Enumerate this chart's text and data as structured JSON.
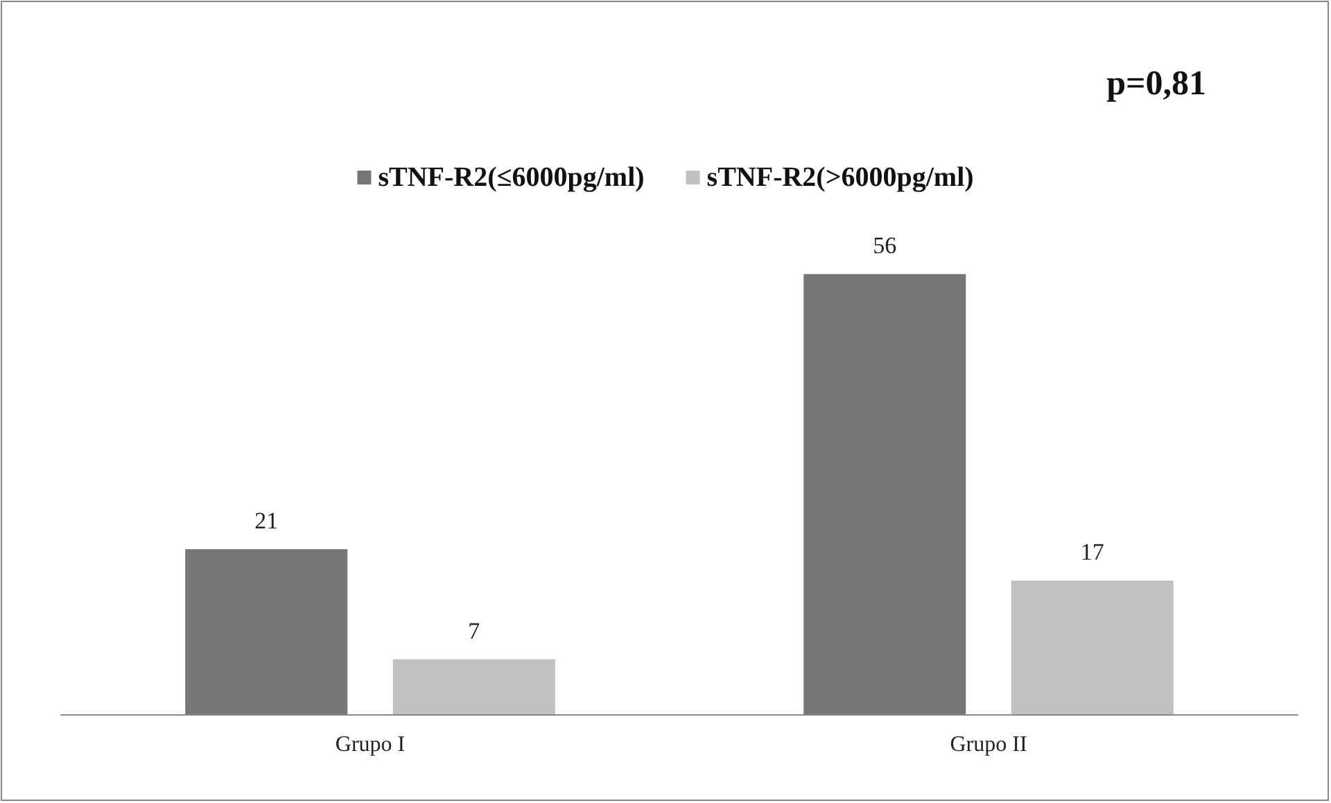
{
  "chart_data": {
    "type": "bar",
    "categories": [
      "Grupo I",
      "Grupo II"
    ],
    "series": [
      {
        "name": "sTNF-R2(≤6000pg/ml)",
        "color": "#767676",
        "values": [
          21,
          56
        ]
      },
      {
        "name": "sTNF-R2(>6000pg/ml)",
        "color": "#c0c0c0",
        "values": [
          7,
          17
        ]
      }
    ],
    "data_labels": true,
    "legend": "top",
    "annotations": [
      "p=0,81"
    ]
  }
}
